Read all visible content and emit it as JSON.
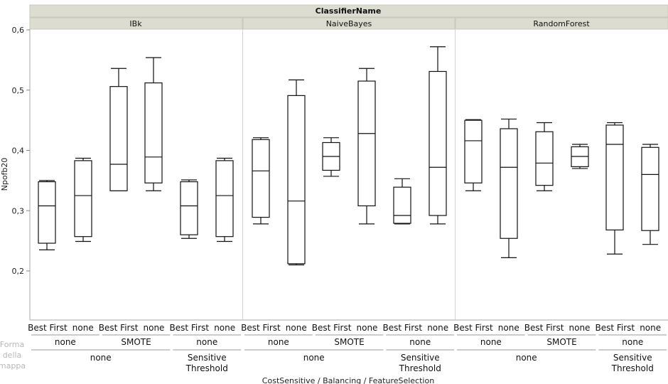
{
  "chart_data": {
    "type": "boxplot",
    "title": "",
    "ylabel": "Npofb20",
    "xlabel": "CostSensitive / Balancing / FeatureSelection",
    "group_header": "ClassifierName",
    "groups": [
      "IBk",
      "NaiveBayes",
      "RandomForest"
    ],
    "ylim": [
      0.12,
      0.6
    ],
    "yticks": [
      0.2,
      0.3,
      0.4,
      0.5,
      0.6
    ],
    "ytick_labels": [
      "0,2",
      "0,3",
      "0,4",
      "0,5",
      "0,6"
    ],
    "grid": false,
    "level1_labels": [
      "Best First",
      "none",
      "Best First",
      "none",
      "Best First",
      "none"
    ],
    "level2_labels": [
      "none",
      "SMOTE",
      "none"
    ],
    "level3_labels": [
      "none",
      "Sensitive Threshold"
    ],
    "side_label": "Forma della mappa",
    "boxes": [
      {
        "group": "IBk",
        "feature": "Best First",
        "balancing": "none",
        "cost": "none",
        "min": 0.235,
        "q1": 0.246,
        "median": 0.308,
        "q3": 0.348,
        "max": 0.35
      },
      {
        "group": "IBk",
        "feature": "none",
        "balancing": "none",
        "cost": "none",
        "min": 0.249,
        "q1": 0.257,
        "median": 0.325,
        "q3": 0.383,
        "max": 0.387
      },
      {
        "group": "IBk",
        "feature": "Best First",
        "balancing": "SMOTE",
        "cost": "none",
        "min": 0.333,
        "q1": 0.333,
        "median": 0.377,
        "q3": 0.506,
        "max": 0.536
      },
      {
        "group": "IBk",
        "feature": "none",
        "balancing": "SMOTE",
        "cost": "none",
        "min": 0.333,
        "q1": 0.346,
        "median": 0.389,
        "q3": 0.512,
        "max": 0.554
      },
      {
        "group": "IBk",
        "feature": "Best First",
        "balancing": "none",
        "cost": "Sensitive Threshold",
        "min": 0.254,
        "q1": 0.26,
        "median": 0.308,
        "q3": 0.348,
        "max": 0.351
      },
      {
        "group": "IBk",
        "feature": "none",
        "balancing": "none",
        "cost": "Sensitive Threshold",
        "min": 0.249,
        "q1": 0.257,
        "median": 0.325,
        "q3": 0.383,
        "max": 0.387
      },
      {
        "group": "NaiveBayes",
        "feature": "Best First",
        "balancing": "none",
        "cost": "none",
        "min": 0.278,
        "q1": 0.289,
        "median": 0.366,
        "q3": 0.418,
        "max": 0.421
      },
      {
        "group": "NaiveBayes",
        "feature": "none",
        "balancing": "none",
        "cost": "none",
        "min": 0.21,
        "q1": 0.212,
        "median": 0.316,
        "q3": 0.491,
        "max": 0.517
      },
      {
        "group": "NaiveBayes",
        "feature": "Best First",
        "balancing": "SMOTE",
        "cost": "none",
        "min": 0.357,
        "q1": 0.367,
        "median": 0.39,
        "q3": 0.413,
        "max": 0.421
      },
      {
        "group": "NaiveBayes",
        "feature": "none",
        "balancing": "SMOTE",
        "cost": "none",
        "min": 0.278,
        "q1": 0.308,
        "median": 0.428,
        "q3": 0.515,
        "max": 0.536
      },
      {
        "group": "NaiveBayes",
        "feature": "Best First",
        "balancing": "none",
        "cost": "Sensitive Threshold",
        "min": 0.278,
        "q1": 0.279,
        "median": 0.292,
        "q3": 0.339,
        "max": 0.353
      },
      {
        "group": "NaiveBayes",
        "feature": "none",
        "balancing": "none",
        "cost": "Sensitive Threshold",
        "min": 0.278,
        "q1": 0.292,
        "median": 0.372,
        "q3": 0.531,
        "max": 0.572
      },
      {
        "group": "RandomForest",
        "feature": "Best First",
        "balancing": "none",
        "cost": "none",
        "min": 0.333,
        "q1": 0.346,
        "median": 0.416,
        "q3": 0.45,
        "max": 0.451
      },
      {
        "group": "RandomForest",
        "feature": "none",
        "balancing": "none",
        "cost": "none",
        "min": 0.222,
        "q1": 0.254,
        "median": 0.372,
        "q3": 0.436,
        "max": 0.452
      },
      {
        "group": "RandomForest",
        "feature": "Best First",
        "balancing": "SMOTE",
        "cost": "none",
        "min": 0.333,
        "q1": 0.342,
        "median": 0.379,
        "q3": 0.431,
        "max": 0.446
      },
      {
        "group": "RandomForest",
        "feature": "none",
        "balancing": "SMOTE",
        "cost": "none",
        "min": 0.37,
        "q1": 0.373,
        "median": 0.39,
        "q3": 0.406,
        "max": 0.41
      },
      {
        "group": "RandomForest",
        "feature": "Best First",
        "balancing": "none",
        "cost": "Sensitive Threshold",
        "min": 0.228,
        "q1": 0.268,
        "median": 0.41,
        "q3": 0.442,
        "max": 0.446
      },
      {
        "group": "RandomForest",
        "feature": "none",
        "balancing": "none",
        "cost": "Sensitive Threshold",
        "min": 0.244,
        "q1": 0.267,
        "median": 0.36,
        "q3": 0.405,
        "max": 0.41
      }
    ]
  }
}
